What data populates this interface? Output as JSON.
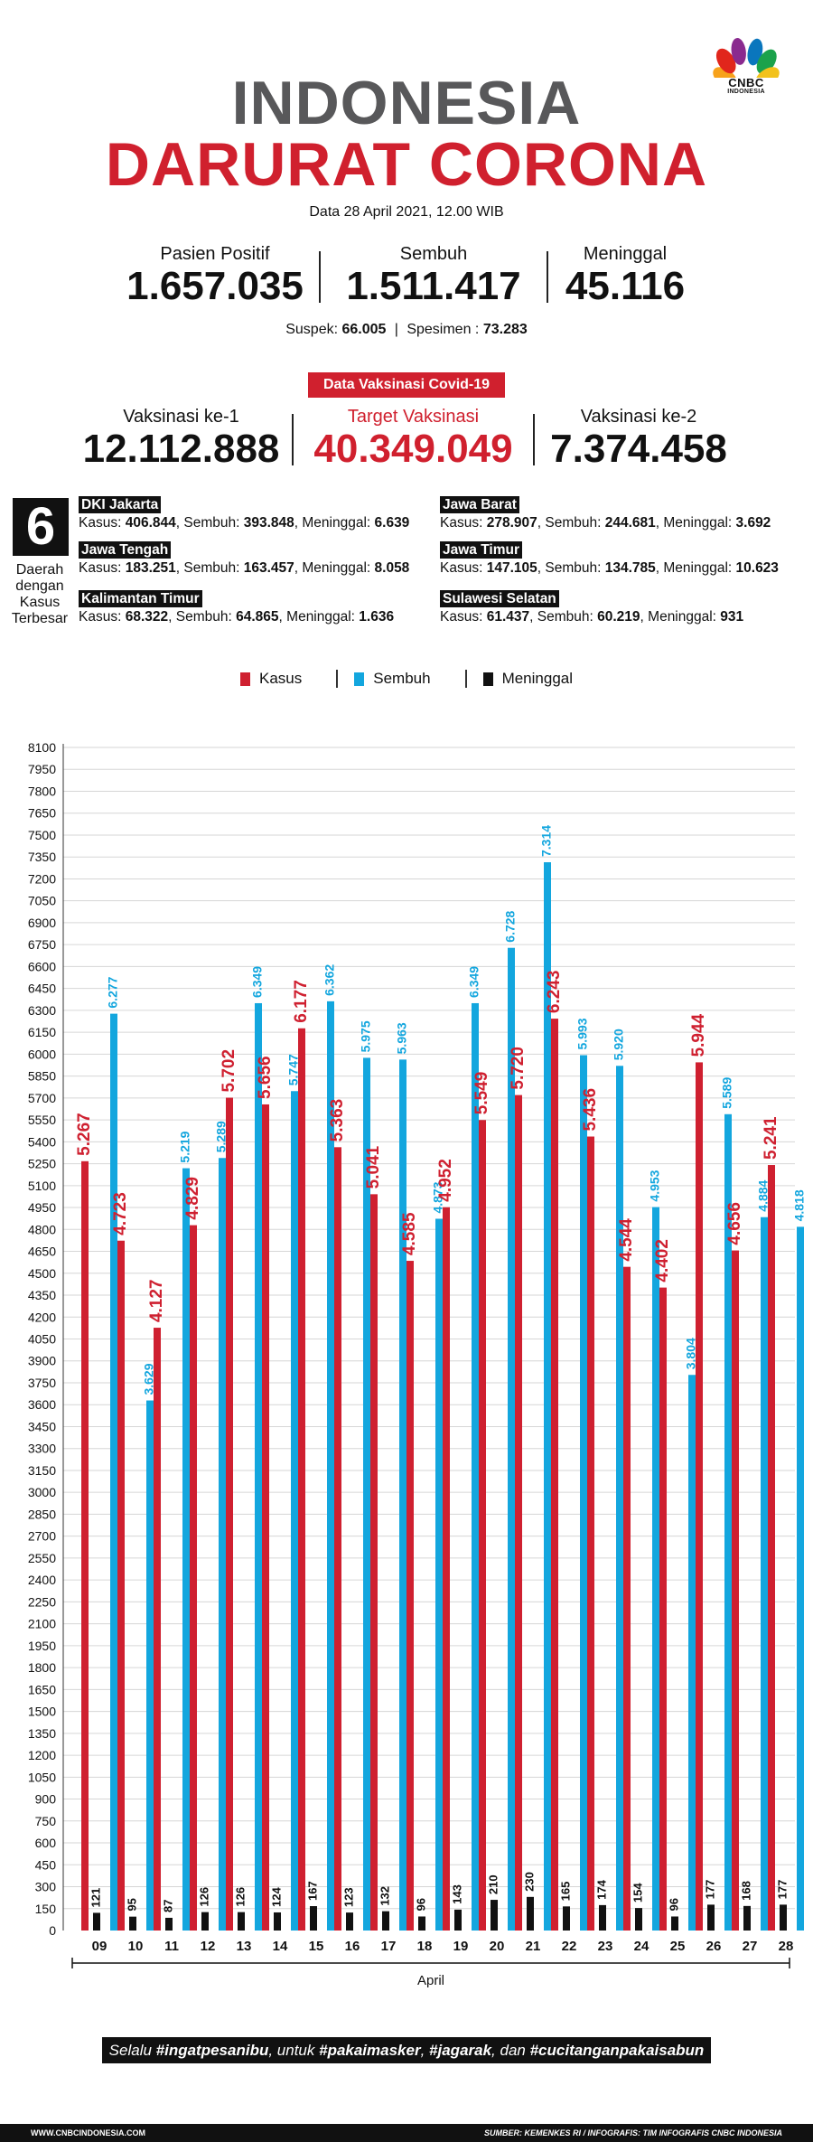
{
  "logo": {
    "text": "CNBC",
    "sub": "INDONESIA"
  },
  "header": {
    "title_line1": "INDONESIA",
    "title_line2": "DARURAT CORONA",
    "date": "Data 28 April 2021, 12.00 WIB"
  },
  "stats": {
    "positif_label": "Pasien Positif",
    "positif_value": "1.657.035",
    "sembuh_label": "Sembuh",
    "sembuh_value": "1.511.417",
    "meninggal_label": "Meninggal",
    "meninggal_value": "45.116",
    "suspek_label": "Suspek:",
    "suspek_value": "66.005",
    "spesimen_label": "Spesimen :",
    "spesimen_value": "73.283"
  },
  "vaksin": {
    "banner": "Data Vaksinasi Covid-19",
    "ke1_label": "Vaksinasi ke-1",
    "ke1_value": "12.112.888",
    "target_label": "Target Vaksinasi",
    "target_value": "40.349.049",
    "ke2_label": "Vaksinasi ke-2",
    "ke2_value": "7.374.458"
  },
  "daerah": {
    "count": "6",
    "line1": "Daerah",
    "line2": "dengan",
    "line3": "Kasus",
    "line4": "Terbesar",
    "regions": [
      {
        "name": "DKI Jakarta",
        "kasus": "406.844",
        "sembuh": "393.848",
        "meninggal": "6.639"
      },
      {
        "name": "Jawa Barat",
        "kasus": "278.907",
        "sembuh": "244.681",
        "meninggal": "3.692"
      },
      {
        "name": "Jawa Tengah",
        "kasus": "183.251",
        "sembuh": "163.457",
        "meninggal": "8.058"
      },
      {
        "name": "Jawa Timur",
        "kasus": "147.105",
        "sembuh": "134.785",
        "meninggal": "10.623"
      },
      {
        "name": "Kalimantan Timur",
        "kasus": "68.322",
        "sembuh": "64.865",
        "meninggal": "1.636"
      },
      {
        "name": "Sulawesi Selatan",
        "kasus": "61.437",
        "sembuh": "60.219",
        "meninggal": "931"
      }
    ],
    "kasus_label": "Kasus:",
    "sembuh_label": "Sembuh:",
    "meninggal_label": "Meninggal:"
  },
  "chart_data": {
    "type": "bar",
    "xlabel": "April",
    "ylabel": "",
    "ylim": [
      0,
      8100
    ],
    "ytick_step": 150,
    "categories": [
      "09",
      "10",
      "11",
      "12",
      "13",
      "14",
      "15",
      "16",
      "17",
      "18",
      "19",
      "20",
      "21",
      "22",
      "23",
      "24",
      "25",
      "26",
      "27",
      "28"
    ],
    "series": [
      {
        "name": "Kasus",
        "color": "#cf2030",
        "values": [
          5267,
          4723,
          4127,
          4829,
          5702,
          5656,
          6177,
          5363,
          5041,
          4585,
          4952,
          5549,
          5720,
          6243,
          5436,
          4544,
          4402,
          5944,
          4656,
          5241
        ],
        "labels": [
          "5.267",
          "4.723",
          "4.127",
          "4.829",
          "5.702",
          "5.656",
          "6.177",
          "5.363",
          "5.041",
          "4.585",
          "4.952",
          "5.549",
          "5.720",
          "6.243",
          "5.436",
          "4.544",
          "4.402",
          "5.944",
          "4.656",
          "5.241"
        ]
      },
      {
        "name": "Sembuh",
        "color": "#13a6de",
        "values": [
          6277,
          3629,
          5219,
          5289,
          6349,
          5747,
          6362,
          5975,
          5963,
          4873,
          6349,
          6728,
          7314,
          5993,
          5920,
          4953,
          3804,
          5589,
          4884,
          4818
        ],
        "labels": [
          "6.277",
          "3.629",
          "5.219",
          "5.289",
          "6.349",
          "5.747",
          "6.362",
          "5.975",
          "5.963",
          "4.873",
          "6.349",
          "6.728",
          "7.314",
          "5.993",
          "5.920",
          "4.953",
          "3.804",
          "5.589",
          "4.884",
          "4.818"
        ]
      },
      {
        "name": "Meninggal",
        "color": "#111111",
        "values": [
          121,
          95,
          87,
          126,
          126,
          124,
          167,
          123,
          132,
          96,
          143,
          210,
          230,
          165,
          174,
          154,
          96,
          177,
          168,
          177
        ],
        "labels": [
          "121",
          "95",
          "87",
          "126",
          "126",
          "124",
          "167",
          "123",
          "132",
          "96",
          "143",
          "210",
          "230",
          "165",
          "174",
          "154",
          "96",
          "177",
          "168",
          "177"
        ]
      }
    ]
  },
  "footer": {
    "pre1": "Selalu ",
    "tag1": "#ingatpesanibu",
    "pre2": ", untuk ",
    "tag2": "#pakaimasker",
    "pre3": ", ",
    "tag3": "#jagarak",
    "pre4": ", dan ",
    "tag4": "#cucitanganpakaisabun",
    "website": "WWW.CNBCINDONESIA.COM",
    "source": "SUMBER: KEMENKES RI / INFOGRAFIS: TIM INFOGRAFIS CNBC INDONESIA"
  }
}
